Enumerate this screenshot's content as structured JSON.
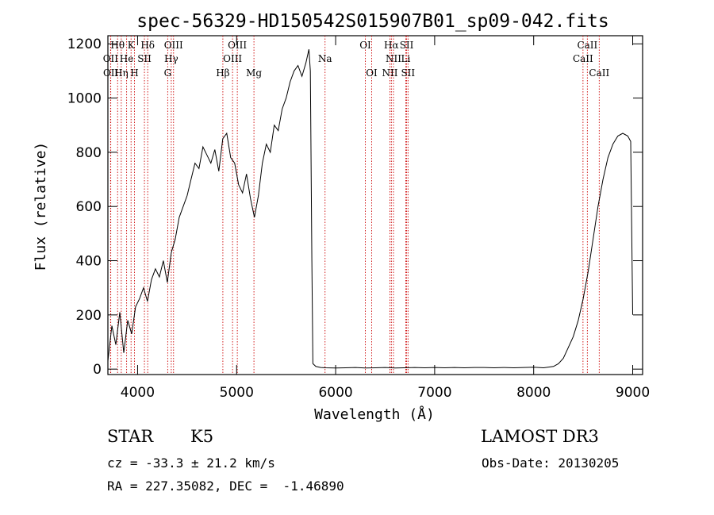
{
  "chart_data": {
    "type": "line",
    "title": "spec-56329-HD150542S015907B01_sp09-042.fits",
    "xlabel": "Wavelength (Å)",
    "ylabel": "Flux (relative)",
    "xlim": [
      3700,
      9100
    ],
    "ylim": [
      -20,
      1230
    ],
    "x_ticks": [
      4000,
      5000,
      6000,
      7000,
      8000,
      9000
    ],
    "y_ticks": [
      0,
      200,
      400,
      600,
      800,
      1000,
      1200
    ],
    "grid": false,
    "series": [
      {
        "x": [
          3700,
          3740,
          3780,
          3820,
          3860,
          3900,
          3940,
          3980,
          4020,
          4060,
          4100,
          4140,
          4180,
          4220,
          4260,
          4300,
          4340,
          4380,
          4420,
          4460,
          4500,
          4540,
          4580,
          4620,
          4660,
          4700,
          4740,
          4780,
          4820,
          4860,
          4900,
          4940,
          4980,
          5020,
          5060,
          5100,
          5140,
          5180,
          5220,
          5260,
          5300,
          5340,
          5380,
          5420,
          5460,
          5500,
          5540,
          5580,
          5620,
          5660,
          5700,
          5730,
          5745,
          5760,
          5770,
          5800,
          5850,
          5900,
          6000,
          6100,
          6200,
          6300,
          6400,
          6500,
          6600,
          6700,
          6800,
          6900,
          7000,
          7100,
          7200,
          7300,
          7400,
          7500,
          7600,
          7700,
          7800,
          7900,
          8000,
          8100,
          8200,
          8250,
          8300,
          8350,
          8400,
          8450,
          8500,
          8550,
          8600,
          8650,
          8700,
          8750,
          8800,
          8850,
          8900,
          8950,
          8980,
          9000
        ],
        "y": [
          30,
          160,
          90,
          210,
          60,
          180,
          130,
          230,
          260,
          300,
          250,
          330,
          370,
          340,
          400,
          320,
          430,
          480,
          560,
          600,
          640,
          700,
          760,
          740,
          820,
          790,
          760,
          810,
          730,
          850,
          870,
          780,
          760,
          680,
          650,
          720,
          630,
          560,
          640,
          760,
          830,
          800,
          900,
          880,
          960,
          1000,
          1060,
          1100,
          1120,
          1080,
          1130,
          1180,
          1100,
          400,
          20,
          10,
          6,
          5,
          4,
          5,
          6,
          4,
          5,
          6,
          4,
          5,
          6,
          5,
          6,
          5,
          6,
          5,
          6,
          6,
          5,
          6,
          5,
          6,
          7,
          5,
          10,
          20,
          40,
          80,
          120,
          180,
          260,
          360,
          480,
          600,
          700,
          780,
          830,
          860,
          870,
          860,
          840,
          200
        ]
      }
    ],
    "line_labels": [
      {
        "text": "Hθ",
        "x": 3798,
        "row": 1
      },
      {
        "text": "K",
        "x": 3934,
        "row": 1
      },
      {
        "text": "Hδ",
        "x": 4102,
        "row": 1
      },
      {
        "text": "OIII",
        "x": 4363,
        "row": 1
      },
      {
        "text": "OIII",
        "x": 5007,
        "row": 1
      },
      {
        "text": "OI",
        "x": 6300,
        "row": 1
      },
      {
        "text": "Hα",
        "x": 6563,
        "row": 1
      },
      {
        "text": "SII",
        "x": 6717,
        "row": 1
      },
      {
        "text": "CaII",
        "x": 8542,
        "row": 1
      },
      {
        "text": "OII",
        "x": 3727,
        "row": 2
      },
      {
        "text": "He",
        "x": 3889,
        "row": 2
      },
      {
        "text": "SII",
        "x": 4069,
        "row": 2
      },
      {
        "text": "Hγ",
        "x": 4340,
        "row": 2
      },
      {
        "text": "OIII",
        "x": 4959,
        "row": 2
      },
      {
        "text": "Na",
        "x": 5893,
        "row": 2
      },
      {
        "text": "NII",
        "x": 6584,
        "row": 2
      },
      {
        "text": "Li",
        "x": 6708,
        "row": 2
      },
      {
        "text": "CaII",
        "x": 8498,
        "row": 2
      },
      {
        "text": "OII",
        "x": 3729,
        "row": 3
      },
      {
        "text": "Hη",
        "x": 3835,
        "row": 3
      },
      {
        "text": "H",
        "x": 3968,
        "row": 3
      },
      {
        "text": "G",
        "x": 4304,
        "row": 3
      },
      {
        "text": "Hβ",
        "x": 4861,
        "row": 3
      },
      {
        "text": "Mg",
        "x": 5175,
        "row": 3
      },
      {
        "text": "OI",
        "x": 6364,
        "row": 3
      },
      {
        "text": "NII",
        "x": 6548,
        "row": 3
      },
      {
        "text": "SII",
        "x": 6731,
        "row": 3
      },
      {
        "text": "CaII",
        "x": 8662,
        "row": 3
      }
    ],
    "marker_lines": [
      3727,
      3729,
      3798,
      3835,
      3889,
      3934,
      3968,
      4069,
      4102,
      4304,
      4340,
      4363,
      4861,
      4959,
      5007,
      5175,
      5893,
      6300,
      6364,
      6548,
      6563,
      6584,
      6708,
      6717,
      6731,
      8498,
      8542,
      8662
    ],
    "colors": {
      "spectrum": "#000000",
      "marker_lines": "#cc0000",
      "axes": "#000000"
    }
  },
  "footer": {
    "object_class": "STAR",
    "subclass": "K5",
    "survey": "LAMOST DR3",
    "redshift": "cz = -33.3 ± 21.2 km/s",
    "obs_date": "Obs-Date: 20130205",
    "coordinates": "RA = 227.35082, DEC =  -1.46890"
  }
}
